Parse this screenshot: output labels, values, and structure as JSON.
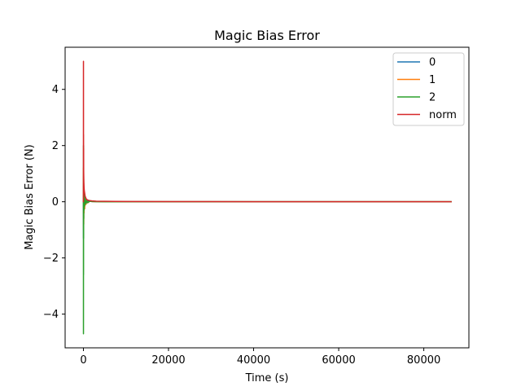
{
  "chart_data": {
    "type": "line",
    "title": "Magic Bias Error",
    "xlabel": "Time (s)",
    "ylabel": "Magic Bias Error (N)",
    "xlim": [
      -4300,
      90600
    ],
    "ylim": [
      -5.2,
      5.5
    ],
    "xticks": [
      0,
      20000,
      40000,
      60000,
      80000
    ],
    "xtick_labels": [
      "0",
      "20000",
      "40000",
      "60000",
      "80000"
    ],
    "yticks": [
      -4,
      -2,
      0,
      2,
      4
    ],
    "ytick_labels": [
      "−4",
      "−2",
      "0",
      "2",
      "4"
    ],
    "grid": false,
    "legend": "top-right",
    "series": [
      {
        "name": "0",
        "color": "#1f77b4",
        "x": [
          0,
          20,
          40,
          60,
          80,
          100,
          150,
          200,
          300,
          400,
          600,
          800,
          1000,
          1500,
          2000,
          3000,
          5000,
          10000,
          20000,
          40000,
          60000,
          80000,
          86400
        ],
        "y": [
          0,
          -1.3,
          0.9,
          -0.6,
          0.5,
          -0.4,
          0.3,
          -0.2,
          0.15,
          -0.1,
          0.06,
          -0.04,
          0.03,
          0.02,
          0.01,
          0.005,
          0.003,
          0.002,
          0.001,
          0.0,
          0.0,
          0.0,
          0.0
        ]
      },
      {
        "name": "1",
        "color": "#ff7f0e",
        "x": [
          0,
          20,
          40,
          60,
          80,
          100,
          150,
          200,
          300,
          400,
          600,
          800,
          1000,
          1500,
          2000,
          3000,
          5000,
          10000,
          20000,
          40000,
          60000,
          80000,
          86400
        ],
        "y": [
          0,
          1.2,
          -1.0,
          0.7,
          -0.8,
          0.5,
          -0.4,
          0.3,
          -0.25,
          0.15,
          -0.1,
          0.06,
          -0.04,
          0.02,
          0.01,
          0.005,
          0.003,
          0.002,
          0.001,
          0.0,
          0.0,
          0.0,
          0.0
        ]
      },
      {
        "name": "2",
        "color": "#2ca02c",
        "x": [
          0,
          10,
          20,
          30,
          40,
          50,
          60,
          80,
          100,
          150,
          200,
          300,
          400,
          600,
          800,
          1000,
          1500,
          2000,
          3000,
          5000,
          10000,
          20000,
          40000,
          60000,
          80000,
          86400
        ],
        "y": [
          0,
          -4.7,
          2.0,
          -2.6,
          1.6,
          -1.3,
          0.8,
          -0.6,
          0.5,
          -0.3,
          0.25,
          -0.15,
          0.1,
          -0.06,
          0.04,
          -0.03,
          0.02,
          0.01,
          0.005,
          0.003,
          0.002,
          0.001,
          0.0,
          0.0,
          0.0,
          0.0
        ]
      },
      {
        "name": "norm",
        "color": "#d62728",
        "x": [
          0,
          10,
          20,
          30,
          40,
          50,
          60,
          80,
          100,
          150,
          200,
          300,
          400,
          600,
          800,
          1000,
          1500,
          2000,
          3000,
          5000,
          10000,
          20000,
          40000,
          60000,
          80000,
          86400
        ],
        "y": [
          0,
          5.0,
          1.6,
          2.4,
          1.3,
          1.9,
          1.1,
          0.9,
          0.7,
          0.5,
          0.4,
          0.3,
          0.2,
          0.12,
          0.08,
          0.06,
          0.04,
          0.03,
          0.02,
          0.015,
          0.01,
          0.005,
          0.003,
          0.002,
          0.002,
          0.002
        ]
      }
    ]
  }
}
